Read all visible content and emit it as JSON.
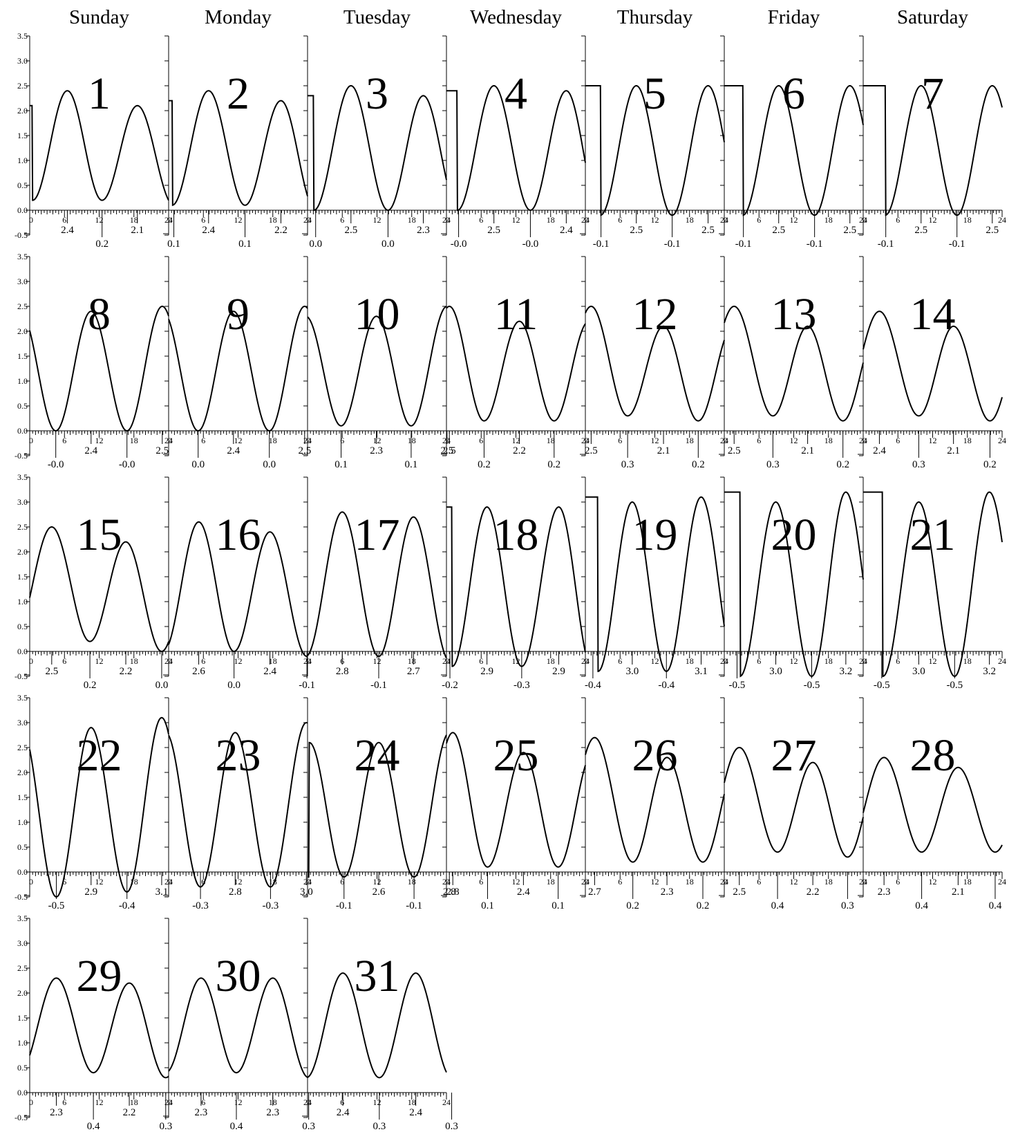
{
  "weekday_headers": [
    "Sunday",
    "Monday",
    "Tuesday",
    "Wednesday",
    "Thursday",
    "Friday",
    "Saturday"
  ],
  "chart_data": {
    "type": "line",
    "description_units": {
      "x": "hour of day",
      "y": "level"
    },
    "x_ticks": [
      "0",
      "6",
      "12",
      "18",
      "24"
    ],
    "y_ticks": [
      "-0.5",
      "0.0",
      "0.5",
      "1.0",
      "1.5",
      "2.0",
      "2.5",
      "3.0",
      "3.5"
    ],
    "xlim": [
      0,
      24
    ],
    "ylim": [
      -0.5,
      3.5
    ],
    "start_weekday": "Sunday",
    "days": [
      {
        "day": "1",
        "events": [
          {
            "t": 6.5,
            "v": 2.4,
            "label": "2.4",
            "kind": "high"
          },
          {
            "t": 12.5,
            "v": 0.2,
            "label": "0.2",
            "kind": "low"
          },
          {
            "t": 18.6,
            "v": 2.1,
            "label": "2.1",
            "kind": "high"
          },
          {
            "t": 24.9,
            "v": 0.1,
            "label": "0.1",
            "kind": "low"
          }
        ]
      },
      {
        "day": "2",
        "events": [
          {
            "t": 6.9,
            "v": 2.4,
            "label": "2.4",
            "kind": "high"
          },
          {
            "t": 13.2,
            "v": 0.1,
            "label": "0.1",
            "kind": "low"
          },
          {
            "t": 19.4,
            "v": 2.2,
            "label": "2.2",
            "kind": "high"
          },
          {
            "t": 25.4,
            "v": 0.0,
            "label": "0.0",
            "kind": "low"
          }
        ]
      },
      {
        "day": "3",
        "events": [
          {
            "t": 7.5,
            "v": 2.5,
            "label": "2.5",
            "kind": "high"
          },
          {
            "t": 13.9,
            "v": 0.0,
            "label": "0.0",
            "kind": "low"
          },
          {
            "t": 20.0,
            "v": 2.3,
            "label": "2.3",
            "kind": "high"
          },
          {
            "t": 26.1,
            "v": -0.0,
            "label": "-0.0",
            "kind": "low"
          }
        ]
      },
      {
        "day": "4",
        "events": [
          {
            "t": 8.2,
            "v": 2.5,
            "label": "2.5",
            "kind": "high"
          },
          {
            "t": 14.5,
            "v": -0.0,
            "label": "-0.0",
            "kind": "low"
          },
          {
            "t": 20.7,
            "v": 2.4,
            "label": "2.4",
            "kind": "high"
          },
          {
            "t": 26.7,
            "v": -0.1,
            "label": "-0.1",
            "kind": "low"
          }
        ]
      },
      {
        "day": "5",
        "events": [
          {
            "t": 8.8,
            "v": 2.5,
            "label": "2.5",
            "kind": "high"
          },
          {
            "t": 15.0,
            "v": -0.1,
            "label": "-0.1",
            "kind": "low"
          },
          {
            "t": 21.2,
            "v": 2.5,
            "label": "2.5",
            "kind": "high"
          },
          {
            "t": 27.3,
            "v": -0.1,
            "label": "-0.1",
            "kind": "low"
          }
        ]
      },
      {
        "day": "6",
        "events": [
          {
            "t": 9.4,
            "v": 2.5,
            "label": "2.5",
            "kind": "high"
          },
          {
            "t": 15.6,
            "v": -0.1,
            "label": "-0.1",
            "kind": "low"
          },
          {
            "t": 21.7,
            "v": 2.5,
            "label": "2.5",
            "kind": "high"
          },
          {
            "t": 27.9,
            "v": -0.1,
            "label": "-0.1",
            "kind": "low"
          }
        ]
      },
      {
        "day": "7",
        "events": [
          {
            "t": 10.0,
            "v": 2.5,
            "label": "2.5",
            "kind": "high"
          },
          {
            "t": 16.2,
            "v": -0.1,
            "label": "-0.1",
            "kind": "low"
          },
          {
            "t": 22.3,
            "v": 2.5,
            "label": "2.5",
            "kind": "high"
          },
          {
            "t": 28.5,
            "v": -0.0,
            "label": "-0.0",
            "kind": "low"
          }
        ]
      },
      {
        "day": "8",
        "events": [
          {
            "t": 4.5,
            "v": -0.0,
            "label": "-0.0",
            "kind": "low"
          },
          {
            "t": 10.6,
            "v": 2.4,
            "label": "2.4",
            "kind": "high"
          },
          {
            "t": 16.8,
            "v": -0.0,
            "label": "-0.0",
            "kind": "low"
          },
          {
            "t": 22.9,
            "v": 2.5,
            "label": "2.5",
            "kind": "high"
          }
        ]
      },
      {
        "day": "9",
        "events": [
          {
            "t": 5.1,
            "v": 0.0,
            "label": "0.0",
            "kind": "low"
          },
          {
            "t": 11.2,
            "v": 2.4,
            "label": "2.4",
            "kind": "high"
          },
          {
            "t": 17.4,
            "v": 0.0,
            "label": "0.0",
            "kind": "low"
          },
          {
            "t": 23.5,
            "v": 2.5,
            "label": "2.5",
            "kind": "high"
          }
        ]
      },
      {
        "day": "10",
        "events": [
          {
            "t": 5.8,
            "v": 0.1,
            "label": "0.1",
            "kind": "low"
          },
          {
            "t": 11.9,
            "v": 2.3,
            "label": "2.3",
            "kind": "high"
          },
          {
            "t": 17.9,
            "v": 0.1,
            "label": "0.1",
            "kind": "low"
          },
          {
            "t": 24.1,
            "v": 2.5,
            "label": "2.5",
            "kind": "high"
          }
        ]
      },
      {
        "day": "11",
        "events": [
          {
            "t": 0.5,
            "v": 2.5,
            "label": "2.5",
            "kind": "high"
          },
          {
            "t": 6.5,
            "v": 0.2,
            "label": "0.2",
            "kind": "low"
          },
          {
            "t": 12.6,
            "v": 2.2,
            "label": "2.2",
            "kind": "high"
          },
          {
            "t": 18.6,
            "v": 0.2,
            "label": "0.2",
            "kind": "low"
          }
        ]
      },
      {
        "day": "12",
        "events": [
          {
            "t": 1.0,
            "v": 2.5,
            "label": "2.5",
            "kind": "high"
          },
          {
            "t": 7.3,
            "v": 0.3,
            "label": "0.3",
            "kind": "low"
          },
          {
            "t": 13.5,
            "v": 2.1,
            "label": "2.1",
            "kind": "high"
          },
          {
            "t": 19.5,
            "v": 0.2,
            "label": "0.2",
            "kind": "low"
          }
        ]
      },
      {
        "day": "13",
        "events": [
          {
            "t": 1.7,
            "v": 2.5,
            "label": "2.5",
            "kind": "high"
          },
          {
            "t": 8.4,
            "v": 0.3,
            "label": "0.3",
            "kind": "low"
          },
          {
            "t": 14.4,
            "v": 2.1,
            "label": "2.1",
            "kind": "high"
          },
          {
            "t": 20.5,
            "v": 0.2,
            "label": "0.2",
            "kind": "low"
          }
        ]
      },
      {
        "day": "14",
        "events": [
          {
            "t": 2.8,
            "v": 2.4,
            "label": "2.4",
            "kind": "high"
          },
          {
            "t": 9.6,
            "v": 0.3,
            "label": "0.3",
            "kind": "low"
          },
          {
            "t": 15.6,
            "v": 2.1,
            "label": "2.1",
            "kind": "high"
          },
          {
            "t": 21.9,
            "v": 0.2,
            "label": "0.2",
            "kind": "low"
          }
        ]
      },
      {
        "day": "15",
        "events": [
          {
            "t": 3.8,
            "v": 2.5,
            "label": "2.5",
            "kind": "high"
          },
          {
            "t": 10.4,
            "v": 0.2,
            "label": "0.2",
            "kind": "low"
          },
          {
            "t": 16.6,
            "v": 2.2,
            "label": "2.2",
            "kind": "high"
          },
          {
            "t": 22.8,
            "v": 0.0,
            "label": "0.0",
            "kind": "low"
          }
        ]
      },
      {
        "day": "16",
        "events": [
          {
            "t": 5.2,
            "v": 2.6,
            "label": "2.6",
            "kind": "high"
          },
          {
            "t": 11.3,
            "v": 0.0,
            "label": "0.0",
            "kind": "low"
          },
          {
            "t": 17.5,
            "v": 2.4,
            "label": "2.4",
            "kind": "high"
          },
          {
            "t": 23.9,
            "v": -0.1,
            "label": "-0.1",
            "kind": "low"
          }
        ]
      },
      {
        "day": "17",
        "events": [
          {
            "t": 6.0,
            "v": 2.8,
            "label": "2.8",
            "kind": "high"
          },
          {
            "t": 12.3,
            "v": -0.1,
            "label": "-0.1",
            "kind": "low"
          },
          {
            "t": 18.3,
            "v": 2.7,
            "label": "2.7",
            "kind": "high"
          },
          {
            "t": 24.6,
            "v": -0.2,
            "label": "-0.2",
            "kind": "low"
          }
        ]
      },
      {
        "day": "18",
        "events": [
          {
            "t": 7.0,
            "v": 2.9,
            "label": "2.9",
            "kind": "high"
          },
          {
            "t": 13.0,
            "v": -0.3,
            "label": "-0.3",
            "kind": "low"
          },
          {
            "t": 19.4,
            "v": 2.9,
            "label": "2.9",
            "kind": "high"
          },
          {
            "t": 25.3,
            "v": -0.4,
            "label": "-0.4",
            "kind": "low"
          }
        ]
      },
      {
        "day": "19",
        "events": [
          {
            "t": 8.1,
            "v": 3.0,
            "label": "3.0",
            "kind": "high"
          },
          {
            "t": 14.0,
            "v": -0.4,
            "label": "-0.4",
            "kind": "low"
          },
          {
            "t": 20.0,
            "v": 3.1,
            "label": "3.1",
            "kind": "high"
          },
          {
            "t": 26.2,
            "v": -0.5,
            "label": "-0.5",
            "kind": "low"
          }
        ]
      },
      {
        "day": "20",
        "events": [
          {
            "t": 8.9,
            "v": 3.0,
            "label": "3.0",
            "kind": "high"
          },
          {
            "t": 15.1,
            "v": -0.5,
            "label": "-0.5",
            "kind": "low"
          },
          {
            "t": 21.0,
            "v": 3.2,
            "label": "3.2",
            "kind": "high"
          },
          {
            "t": 27.2,
            "v": -0.5,
            "label": "-0.5",
            "kind": "low"
          }
        ]
      },
      {
        "day": "21",
        "events": [
          {
            "t": 9.6,
            "v": 3.0,
            "label": "3.0",
            "kind": "high"
          },
          {
            "t": 15.8,
            "v": -0.5,
            "label": "-0.5",
            "kind": "low"
          },
          {
            "t": 21.8,
            "v": 3.2,
            "label": "3.2",
            "kind": "high"
          },
          {
            "t": 28.1,
            "v": -0.5,
            "label": "-0.5",
            "kind": "low"
          }
        ]
      },
      {
        "day": "22",
        "events": [
          {
            "t": 4.6,
            "v": -0.5,
            "label": "-0.5",
            "kind": "low"
          },
          {
            "t": 10.6,
            "v": 2.9,
            "label": "2.9",
            "kind": "high"
          },
          {
            "t": 16.8,
            "v": -0.4,
            "label": "-0.4",
            "kind": "low"
          },
          {
            "t": 22.8,
            "v": 3.1,
            "label": "3.1",
            "kind": "high"
          }
        ]
      },
      {
        "day": "23",
        "events": [
          {
            "t": 5.5,
            "v": -0.3,
            "label": "-0.3",
            "kind": "low"
          },
          {
            "t": 11.5,
            "v": 2.8,
            "label": "2.8",
            "kind": "high"
          },
          {
            "t": 17.6,
            "v": -0.3,
            "label": "-0.3",
            "kind": "low"
          },
          {
            "t": 23.8,
            "v": 3.0,
            "label": "3.0",
            "kind": "high"
          }
        ]
      },
      {
        "day": "24",
        "events": [
          {
            "t": 6.3,
            "v": -0.1,
            "label": "-0.1",
            "kind": "low"
          },
          {
            "t": 12.3,
            "v": 2.6,
            "label": "2.6",
            "kind": "high"
          },
          {
            "t": 18.4,
            "v": -0.1,
            "label": "-0.1",
            "kind": "low"
          },
          {
            "t": 24.5,
            "v": 2.8,
            "label": "2.8",
            "kind": "high"
          }
        ]
      },
      {
        "day": "25",
        "events": [
          {
            "t": 1.1,
            "v": 2.8,
            "label": "2.8",
            "kind": "high"
          },
          {
            "t": 7.1,
            "v": 0.1,
            "label": "0.1",
            "kind": "low"
          },
          {
            "t": 13.3,
            "v": 2.4,
            "label": "2.4",
            "kind": "high"
          },
          {
            "t": 19.3,
            "v": 0.1,
            "label": "0.1",
            "kind": "low"
          }
        ]
      },
      {
        "day": "26",
        "events": [
          {
            "t": 1.6,
            "v": 2.7,
            "label": "2.7",
            "kind": "high"
          },
          {
            "t": 8.2,
            "v": 0.2,
            "label": "0.2",
            "kind": "low"
          },
          {
            "t": 14.1,
            "v": 2.3,
            "label": "2.3",
            "kind": "high"
          },
          {
            "t": 20.3,
            "v": 0.2,
            "label": "0.2",
            "kind": "low"
          }
        ]
      },
      {
        "day": "27",
        "events": [
          {
            "t": 2.6,
            "v": 2.5,
            "label": "2.5",
            "kind": "high"
          },
          {
            "t": 9.2,
            "v": 0.4,
            "label": "0.4",
            "kind": "low"
          },
          {
            "t": 15.3,
            "v": 2.2,
            "label": "2.2",
            "kind": "high"
          },
          {
            "t": 21.3,
            "v": 0.3,
            "label": "0.3",
            "kind": "low"
          }
        ]
      },
      {
        "day": "28",
        "events": [
          {
            "t": 3.6,
            "v": 2.3,
            "label": "2.3",
            "kind": "high"
          },
          {
            "t": 10.1,
            "v": 0.4,
            "label": "0.4",
            "kind": "low"
          },
          {
            "t": 16.4,
            "v": 2.1,
            "label": "2.1",
            "kind": "high"
          },
          {
            "t": 22.8,
            "v": 0.4,
            "label": "0.4",
            "kind": "low"
          }
        ]
      },
      {
        "day": "29",
        "events": [
          {
            "t": 4.6,
            "v": 2.3,
            "label": "2.3",
            "kind": "high"
          },
          {
            "t": 11.0,
            "v": 0.4,
            "label": "0.4",
            "kind": "low"
          },
          {
            "t": 17.2,
            "v": 2.2,
            "label": "2.2",
            "kind": "high"
          },
          {
            "t": 23.5,
            "v": 0.3,
            "label": "0.3",
            "kind": "low"
          }
        ]
      },
      {
        "day": "30",
        "events": [
          {
            "t": 5.6,
            "v": 2.3,
            "label": "2.3",
            "kind": "high"
          },
          {
            "t": 11.7,
            "v": 0.4,
            "label": "0.4",
            "kind": "low"
          },
          {
            "t": 18.0,
            "v": 2.3,
            "label": "2.3",
            "kind": "high"
          },
          {
            "t": 24.2,
            "v": 0.3,
            "label": "0.3",
            "kind": "low"
          }
        ]
      },
      {
        "day": "31",
        "events": [
          {
            "t": 6.1,
            "v": 2.4,
            "label": "2.4",
            "kind": "high"
          },
          {
            "t": 12.4,
            "v": 0.3,
            "label": "0.3",
            "kind": "low"
          },
          {
            "t": 18.7,
            "v": 2.4,
            "label": "2.4",
            "kind": "high"
          },
          {
            "t": 24.9,
            "v": 0.3,
            "label": "0.3",
            "kind": "low"
          }
        ]
      }
    ]
  }
}
